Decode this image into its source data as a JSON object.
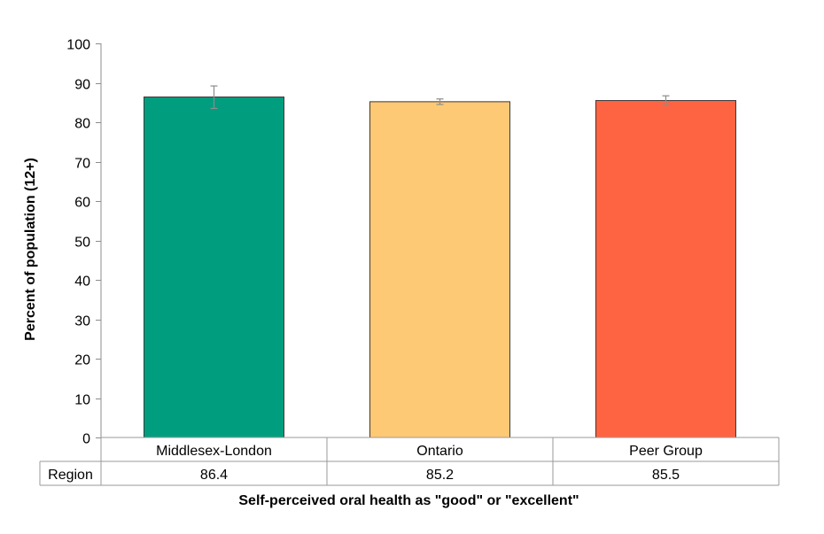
{
  "chart_data": {
    "type": "bar",
    "categories": [
      "Middlesex-London",
      "Ontario",
      "Peer Group"
    ],
    "values": [
      86.4,
      85.2,
      85.5
    ],
    "value_labels": [
      "86.4",
      "85.2",
      "85.5"
    ],
    "error_bars": [
      {
        "low": 83.5,
        "high": 89.2
      },
      {
        "low": 84.5,
        "high": 85.9
      },
      {
        "low": 84.3,
        "high": 86.7
      }
    ],
    "colors": [
      "#009E7E",
      "#FDC975",
      "#FF6442"
    ],
    "ylabel": "Percent of population (12+)",
    "xlabel": "Self-perceived oral health as \"good\" or \"excellent\"",
    "ylim": [
      0,
      100
    ],
    "yticks": [
      0,
      10,
      20,
      30,
      40,
      50,
      60,
      70,
      80,
      90,
      100
    ],
    "data_table_row_label": "Region",
    "grid": false,
    "legend": "none"
  }
}
